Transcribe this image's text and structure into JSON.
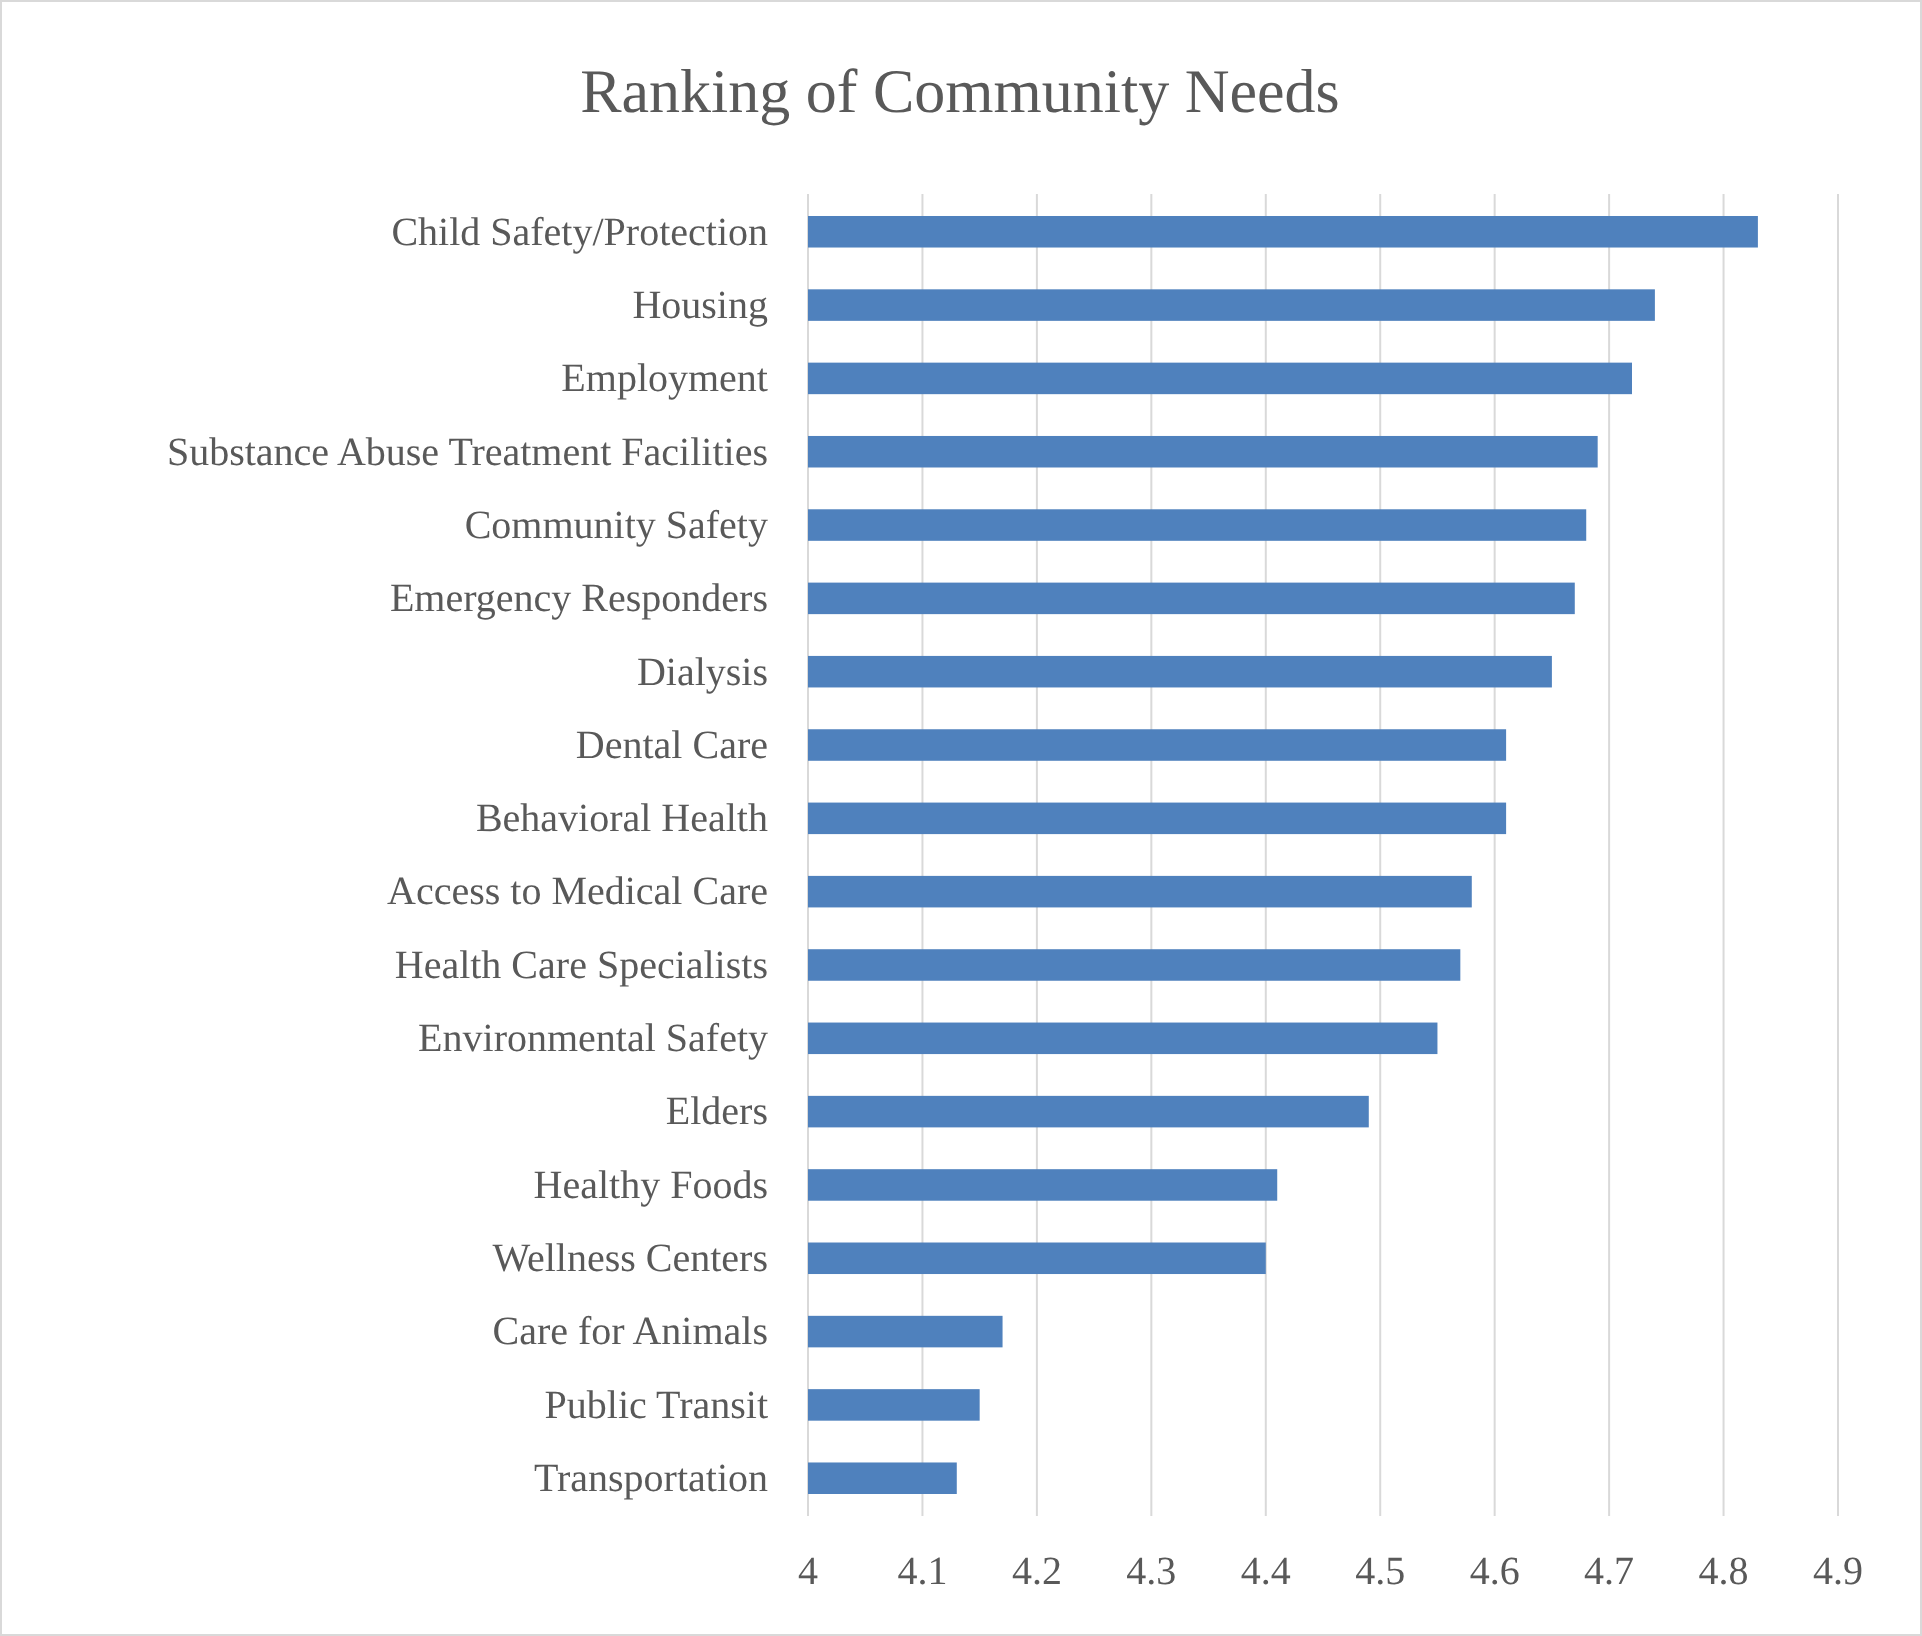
{
  "chart_data": {
    "type": "bar",
    "orientation": "horizontal",
    "title": "Ranking of Community Needs",
    "categories": [
      "Child Safety/Protection",
      "Housing",
      "Employment",
      "Substance Abuse Treatment Facilities",
      "Community Safety",
      "Emergency Responders",
      "Dialysis",
      "Dental Care",
      "Behavioral Health",
      "Access to Medical Care",
      "Health Care Specialists",
      "Environmental Safety",
      "Elders",
      "Healthy Foods",
      "Wellness Centers",
      "Care for Animals",
      "Public Transit",
      "Transportation"
    ],
    "values": [
      4.83,
      4.74,
      4.72,
      4.69,
      4.68,
      4.67,
      4.65,
      4.61,
      4.61,
      4.58,
      4.57,
      4.55,
      4.49,
      4.41,
      4.4,
      4.17,
      4.15,
      4.13
    ],
    "color": "#4f81bd",
    "xlim": [
      4,
      4.9
    ],
    "xticks": [
      4,
      4.1,
      4.2,
      4.3,
      4.4,
      4.5,
      4.6,
      4.7,
      4.8,
      4.9
    ],
    "grid": "x"
  }
}
